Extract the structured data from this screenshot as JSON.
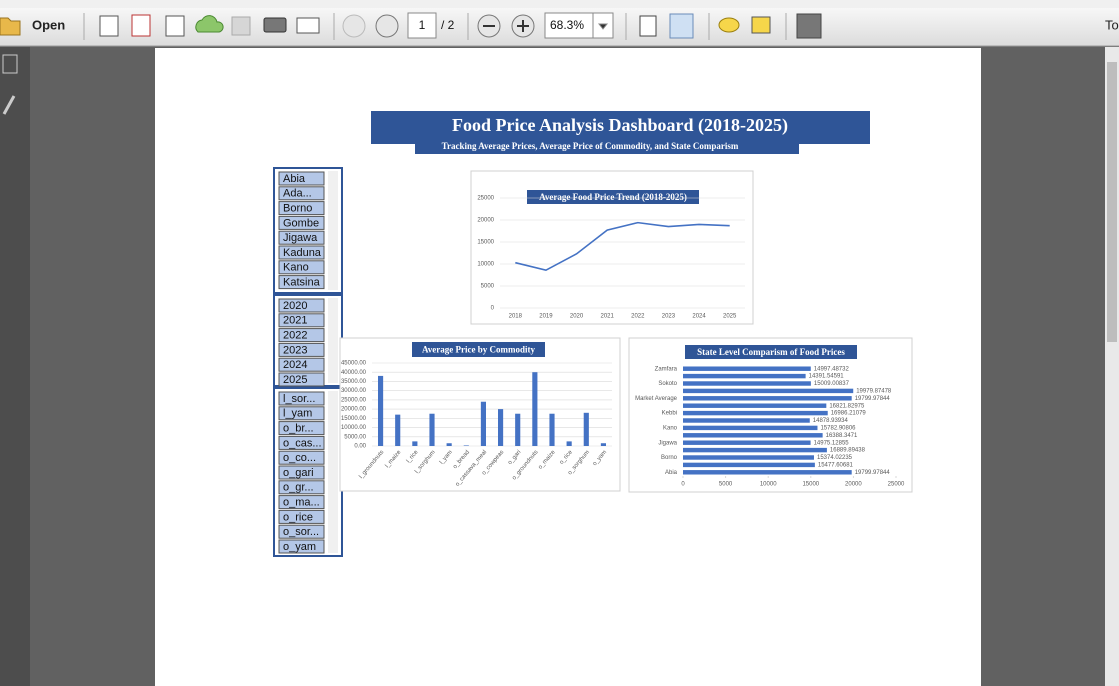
{
  "toolbar": {
    "open": "Open",
    "page": "1",
    "pages": "/ 2",
    "zoom": "68.3%",
    "tools": "To"
  },
  "document": {
    "title": "Food Price Analysis Dashboard (2018-2025)",
    "subtitle": "Tracking Average Prices, Average Price of Commodity, and State Comparism"
  },
  "slicers": [
    {
      "items": [
        "Abia",
        "Ada...",
        "Borno",
        "Gombe",
        "Jigawa",
        "Kaduna",
        "Kano",
        "Katsina"
      ]
    },
    {
      "items": [
        "2020",
        "2021",
        "2022",
        "2023",
        "2024",
        "2025"
      ]
    },
    {
      "items": [
        "l_sor...",
        "l_yam",
        "o_br...",
        "o_cas...",
        "o_co...",
        "o_gari",
        "o_gr...",
        "o_ma...",
        "o_rice",
        "o_sor...",
        "o_yam"
      ]
    }
  ],
  "chart_data": [
    {
      "type": "line",
      "title": "Average Food Price Trend (2018-2025)",
      "categories": [
        "2018",
        "2019",
        "2020",
        "2021",
        "2022",
        "2023",
        "2024",
        "2025"
      ],
      "values": [
        10300,
        8600,
        12300,
        17700,
        19400,
        18500,
        19000,
        18700
      ],
      "color": "#4472c4",
      "ylim": [
        0,
        25000
      ],
      "yticks": [
        0,
        5000,
        10000,
        15000,
        20000,
        25000
      ],
      "grid": true
    },
    {
      "type": "bar",
      "title": "Average Price by Commodity",
      "categories": [
        "l_groundnuts",
        "l_maize",
        "l_rice",
        "l_sorghum",
        "l_yam",
        "o_bread",
        "o_cassava_meal",
        "o_cowpeas",
        "o_gari",
        "o_groundnuts",
        "o_maize",
        "o_rice",
        "o_sorghum",
        "o_yam"
      ],
      "values": [
        38000,
        17000,
        2500,
        17500,
        1500,
        300,
        24000,
        20000,
        17500,
        40000,
        17500,
        2500,
        18000,
        1500
      ],
      "color": "#4472c4",
      "ylim": [
        0,
        45000
      ],
      "yticks": [
        {
          "value": 0,
          "label": "0.00"
        },
        {
          "value": 5000,
          "label": "5000.00"
        },
        {
          "value": 10000,
          "label": "10000.00"
        },
        {
          "value": 15000,
          "label": "15000.00"
        },
        {
          "value": 20000,
          "label": "20000.00"
        },
        {
          "value": 25000,
          "label": "25000.00"
        },
        {
          "value": 30000,
          "label": "30000.00"
        },
        {
          "value": 35000,
          "label": "35000.00"
        },
        {
          "value": 40000,
          "label": "40000.00"
        },
        {
          "value": 45000,
          "label": "45000.00"
        }
      ],
      "grid": true
    },
    {
      "type": "barh",
      "title": "State Level Comparism of Food Prices",
      "categories": [
        "Abia",
        null,
        "Borno",
        null,
        "Jigawa",
        null,
        "Kano",
        null,
        "Kebbi",
        null,
        "Market Average",
        null,
        "Sokoto",
        null,
        "Zamfara"
      ],
      "values": [
        19799.97844,
        15477.60681,
        15374.02235,
        16889.89438,
        14975.12855,
        16388.3471,
        15782.90806,
        14878.93934,
        16986.21079,
        16821.82975,
        19799.97844,
        19979.87478,
        15009.00837,
        14391.54591,
        14997.48732
      ],
      "color": "#4472c4",
      "xlim": [
        0,
        25000
      ],
      "xticks": [
        0,
        5000,
        10000,
        15000,
        20000,
        25000
      ],
      "grid": false
    }
  ]
}
